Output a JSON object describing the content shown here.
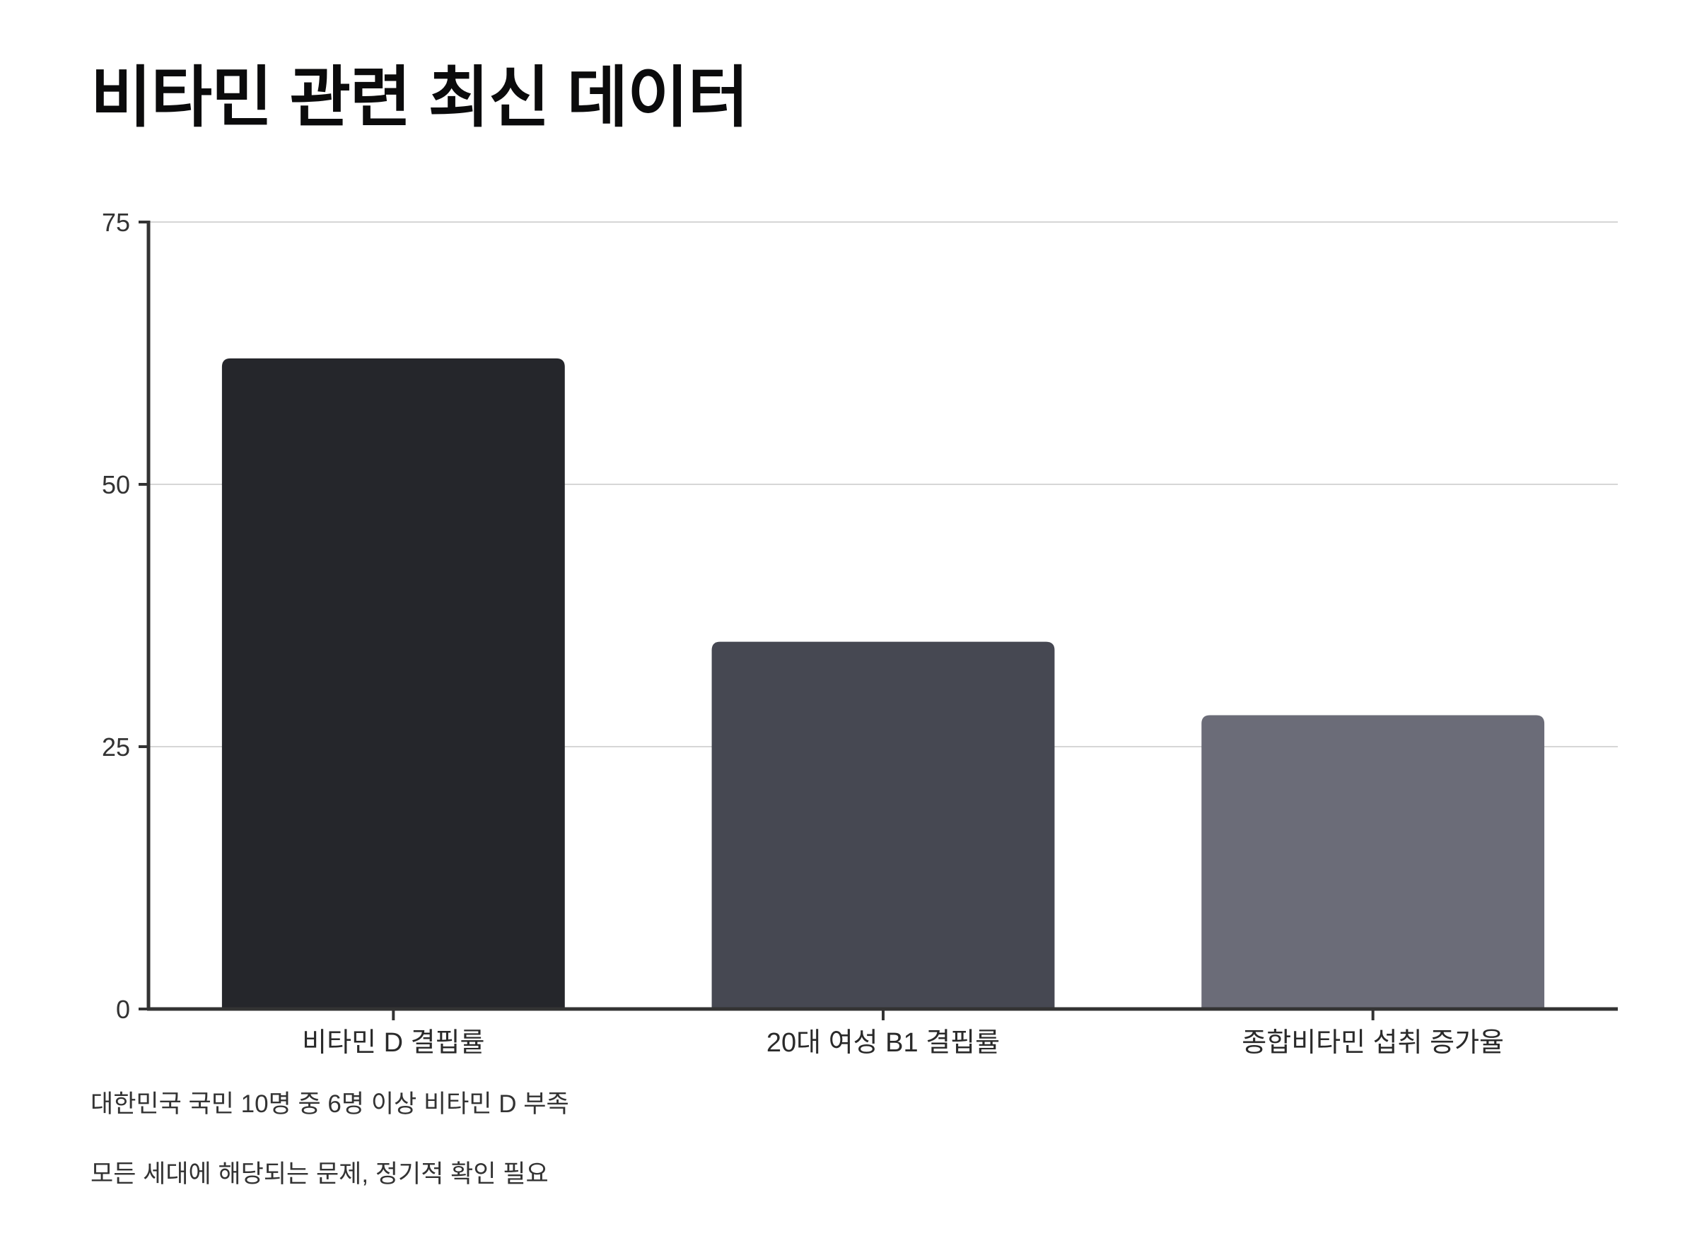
{
  "title": "비타민 관련 최신 데이터",
  "chart_data": {
    "type": "bar",
    "categories": [
      "비타민 D 결핍률",
      "20대 여성 B1 결핍률",
      "종합비타민 섭취 증가율"
    ],
    "values": [
      62,
      35,
      28
    ],
    "colors": [
      "#25262b",
      "#464852",
      "#6b6c78"
    ],
    "ylim": [
      0,
      75
    ],
    "yticks": [
      0,
      25,
      50,
      75
    ],
    "grid": true,
    "xlabel": "",
    "ylabel": ""
  },
  "notes": [
    "대한민국 국민 10명 중 6명 이상 비타민 D 부족",
    "모든 세대에 해당되는 문제, 정기적 확인 필요"
  ]
}
